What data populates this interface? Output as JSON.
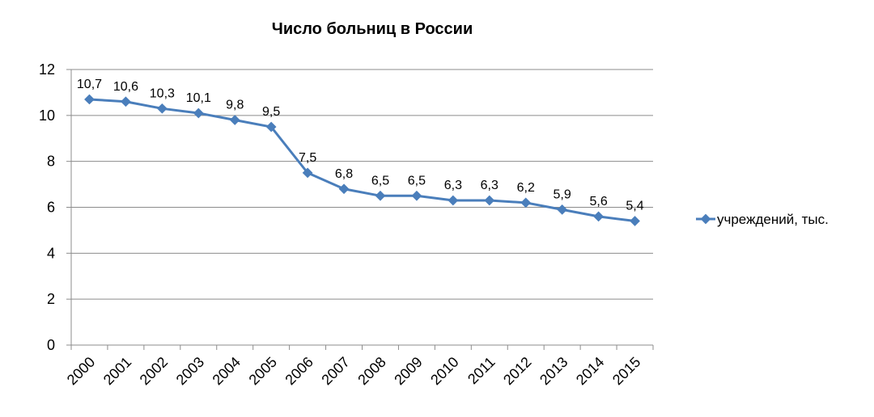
{
  "chart_data": {
    "type": "line",
    "title": "Число больниц в России",
    "xlabel": "",
    "ylabel": "",
    "categories": [
      "2000",
      "2001",
      "2002",
      "2003",
      "2004",
      "2005",
      "2006",
      "2007",
      "2008",
      "2009",
      "2010",
      "2011",
      "2012",
      "2013",
      "2014",
      "2015"
    ],
    "yticks": [
      "0",
      "2",
      "4",
      "6",
      "8",
      "10",
      "12"
    ],
    "ylim": [
      0,
      12
    ],
    "grid": true,
    "legend_position": "right",
    "series": [
      {
        "name": "учреждений, тыс.",
        "values": [
          10.7,
          10.6,
          10.3,
          10.1,
          9.8,
          9.5,
          7.5,
          6.8,
          6.5,
          6.5,
          6.3,
          6.3,
          6.2,
          5.9,
          5.6,
          5.4
        ],
        "data_labels": [
          "10,7",
          "10,6",
          "10,3",
          "10,1",
          "9,8",
          "9,5",
          "7,5",
          "6,8",
          "6,5",
          "6,5",
          "6,3",
          "6,3",
          "6,2",
          "5,9",
          "5,6",
          "5,4"
        ],
        "color": "#4A7EBB"
      }
    ]
  }
}
